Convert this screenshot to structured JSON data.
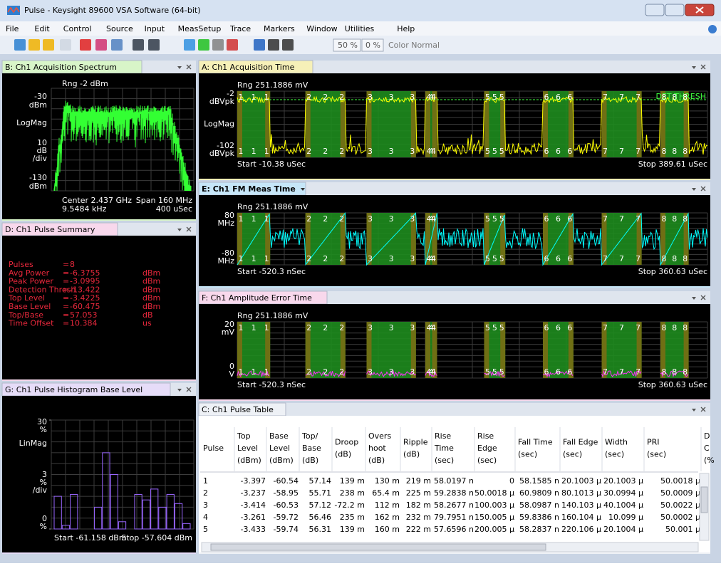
{
  "window": {
    "title": "Pulse - Keysight 89600 VSA Software (64-bit)"
  },
  "menu": [
    "File",
    "Edit",
    "Control",
    "Source",
    "Input",
    "MeasSetup",
    "Trace",
    "Markers",
    "Window",
    "Utilities",
    "Help"
  ],
  "toolbar": {
    "zoom1": "50 %",
    "zoom2": "0 %",
    "color": "Color Normal"
  },
  "pulse_labels": [
    "1",
    "2",
    "3",
    "4",
    "5",
    "6",
    "7",
    "8"
  ],
  "panels": {
    "B": {
      "title": "B: Ch1 Acquisition Spectrum",
      "range": "Rng -2 dBm",
      "ytop": [
        "-30",
        "dBm"
      ],
      "ymid": "LogMag",
      "scale": [
        "10",
        "dB",
        "/div"
      ],
      "ybot": [
        "-130",
        "dBm"
      ],
      "foot": [
        "Center 2.437 GHz",
        "Span 160 MHz",
        "9.5484 kHz",
        "400 uSec"
      ]
    },
    "A": {
      "title": "A: Ch1 Acquisition Time",
      "range": "Rng 251.1886 mV",
      "ytop": [
        "-2",
        "dBVpk"
      ],
      "ymid": "LogMag",
      "ybot": [
        "-102",
        "dBVpk"
      ],
      "start": "Start -10.38 uSec",
      "stop": "Stop 389.61 uSec",
      "threshold": "DET THRESH"
    },
    "E": {
      "title": "E: Ch1 FM Meas Time",
      "range": "Rng 251.1886 mV",
      "ytop": [
        "80",
        "MHz"
      ],
      "ybot": [
        "-80",
        "MHz"
      ],
      "start": "Start -520.3 nSec",
      "stop": "Stop 360.63 uSec"
    },
    "F": {
      "title": "F: Ch1 Amplitude Error Time",
      "range": "Rng 251.1886 mV",
      "ytop": [
        "20",
        "mV"
      ],
      "ybot": [
        "0",
        "V"
      ],
      "start": "Start -520.3 nSec",
      "stop": "Stop 360.63 uSec"
    },
    "D": {
      "title": "D: Ch1 Pulse Summary",
      "rows": [
        {
          "label": "Pulses",
          "eq": "=",
          "value": "8"
        },
        {
          "label": "Avg Power",
          "eq": "=",
          "value": "-6.3755",
          "unit": "dBm"
        },
        {
          "label": "Peak Power",
          "eq": "=",
          "value": "-3.0995",
          "unit": "dBm"
        },
        {
          "label": "Detection Thresh",
          "eq": "=",
          "value": "-13.422",
          "unit": "dBm"
        },
        {
          "label": "Top Level",
          "eq": "=",
          "value": "-3.4225",
          "unit": "dBm"
        },
        {
          "label": "Base Level",
          "eq": "=",
          "value": "-60.475",
          "unit": "dBm"
        },
        {
          "label": "Top/Base",
          "eq": "=",
          "value": "57.053",
          "unit": "dB"
        },
        {
          "label": "Time Offset",
          "eq": "=",
          "value": "10.384",
          "unit": "us"
        }
      ]
    },
    "G": {
      "title": "G: Ch1 Pulse Histogram Base Level",
      "ylim": [
        0,
        30
      ],
      "yticks": [
        30,
        0
      ],
      "yunit": "%",
      "ymid": "LinMag",
      "scale": [
        "3",
        "%",
        "/div"
      ],
      "start": "Start -61.158 dBm",
      "stop": "Stop -57.604 dBm",
      "values": [
        9,
        1,
        9.5,
        0,
        0,
        6,
        21,
        15,
        2,
        0,
        9.5,
        8,
        11,
        6,
        9.5,
        7,
        1.5
      ]
    },
    "C": {
      "title": "C: Ch1 Pulse Table",
      "header": [
        [
          "Pulse"
        ],
        [
          "Top",
          "Level",
          "(dBm)"
        ],
        [
          "Base",
          "Level",
          "(dBm)"
        ],
        [
          "Top/",
          "Base",
          "(dB)"
        ],
        [
          "Droop",
          "(dB)"
        ],
        [
          "Overs",
          "hoot",
          "(dB)"
        ],
        [
          "Ripple",
          "(dB)"
        ],
        [
          "Rise",
          "Time",
          "(sec)"
        ],
        [
          "Rise",
          "Edge",
          "(sec)"
        ],
        [
          "Fall Time",
          "(sec)"
        ],
        [
          "Fall Edge",
          "(sec)"
        ],
        [
          "Width",
          "(sec)"
        ],
        [
          "PRI",
          "(sec)"
        ],
        [
          "D",
          "C",
          "(%"
        ]
      ],
      "rows": [
        [
          "1",
          "-3.397",
          "-60.54",
          "57.14",
          "139 m",
          "130 m",
          "219 m",
          "58.0197 n",
          "0",
          "58.1585 n",
          "20.1003 µ",
          "20.1003 µ",
          "50.0018 µ"
        ],
        [
          "2",
          "-3.237",
          "-58.95",
          "55.71",
          "238 m",
          "65.4 m",
          "225 m",
          "59.2838 n",
          "50.0018 µ",
          "60.9809 n",
          "80.1013 µ",
          "30.0994 µ",
          "50.0009 µ"
        ],
        [
          "3",
          "-3.414",
          "-60.53",
          "57.12",
          "-72.2 m",
          "112 m",
          "182 m",
          "58.2677 n",
          "100.003 µ",
          "58.0987 n",
          "140.103 µ",
          "40.1004 µ",
          "50.0022 µ"
        ],
        [
          "4",
          "-3.261",
          "-59.72",
          "56.46",
          "235 m",
          "162 m",
          "232 m",
          "79.7951 n",
          "150.005 µ",
          "59.8386 n",
          "160.104 µ",
          "10.099 µ",
          "50.0002 µ"
        ],
        [
          "5",
          "-3.433",
          "-59.74",
          "56.31",
          "139 m",
          "160 m",
          "222 m",
          "57.6596 n",
          "200.005 µ",
          "58.2837 n",
          "220.106 µ",
          "20.1004 µ",
          "50.001 µ"
        ]
      ]
    }
  }
}
